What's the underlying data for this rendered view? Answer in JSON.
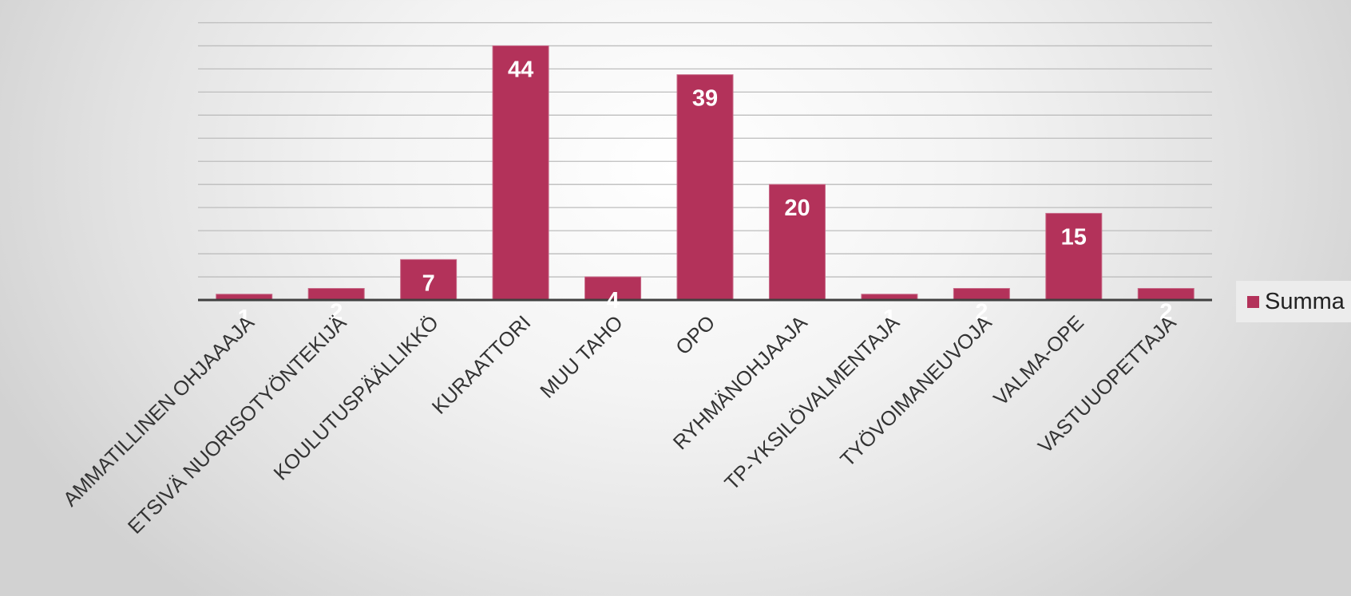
{
  "chart_data": {
    "type": "bar",
    "categories": [
      "AMMATILLINEN OHJAAAJA",
      "ETSIVÄ NUORISOTYÖNTEKIJÄ",
      "KOULUTUSPÄÄLLIKKÖ",
      "KURAATTORI",
      "MUU TAHO",
      "OPO",
      "RYHMÄNOHJAAJA",
      "TP-YKSILÖVALMENTAJA",
      "TYÖVOIMANEUVOJA",
      "VALMA-OPE",
      "VASTUUOPETTAJA"
    ],
    "series": [
      {
        "name": "Summa",
        "values": [
          1,
          2,
          7,
          44,
          4,
          39,
          20,
          1,
          2,
          15,
          2
        ]
      }
    ],
    "ylim": [
      0,
      50
    ],
    "grid": true,
    "legend_position": "right",
    "colors": {
      "bar": "#b3325a",
      "label": "#ffffff",
      "grid": "#bdbdbd",
      "axis": "#404040"
    }
  }
}
